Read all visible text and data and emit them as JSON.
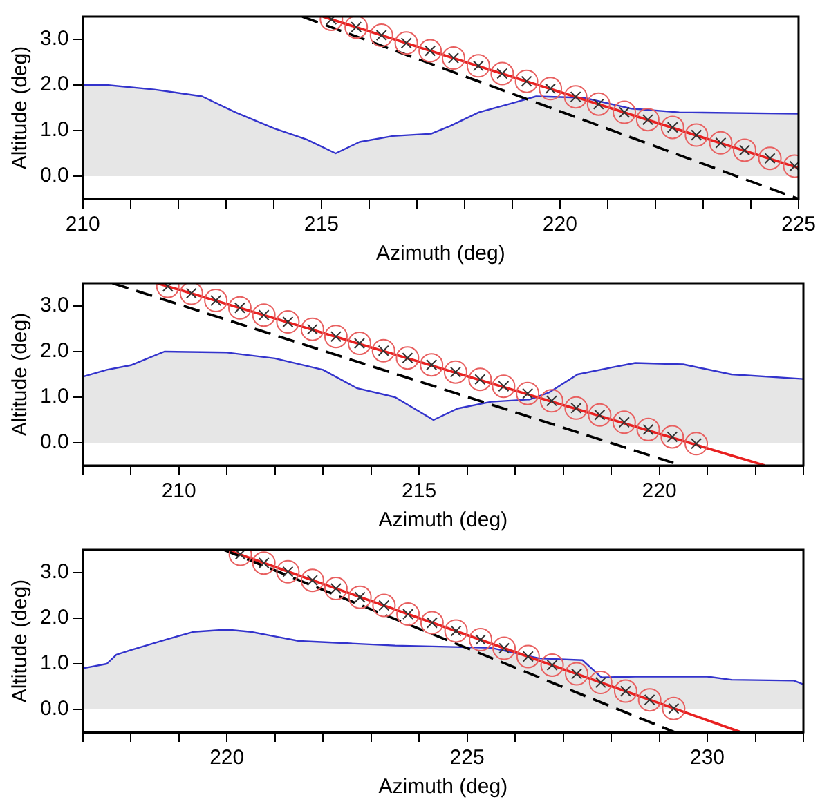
{
  "chart_data": [
    {
      "type": "line",
      "xlabel": "Azimuth (deg)",
      "ylabel": "Altitude (deg)",
      "xlim": [
        210,
        225
      ],
      "ylim": [
        -0.5,
        3.5
      ],
      "xticks": [
        210,
        {
          "value": 211,
          "label": null
        },
        {
          "value": 212,
          "label": null
        },
        {
          "value": 213,
          "label": null
        },
        {
          "value": 214,
          "label": null
        },
        215,
        {
          "value": 216,
          "label": null
        },
        {
          "value": 217,
          "label": null
        },
        {
          "value": 218,
          "label": null
        },
        {
          "value": 219,
          "label": null
        },
        220,
        {
          "value": 221,
          "label": null
        },
        {
          "value": 222,
          "label": null
        },
        {
          "value": 223,
          "label": null
        },
        {
          "value": 224,
          "label": null
        },
        225
      ],
      "yticks": [
        {
          "value": 0,
          "label": "0.0"
        },
        {
          "value": 1,
          "label": "1.0"
        },
        {
          "value": 2,
          "label": "2.0"
        },
        {
          "value": 3,
          "label": "3.0"
        }
      ],
      "grid": false,
      "legend": false,
      "series": [
        {
          "type": "area",
          "color": "#3333cc",
          "x": [
            210,
            210.5,
            211.5,
            212.5,
            213.2,
            214,
            214.7,
            215.3,
            215.8,
            216.5,
            217.3,
            217.7,
            218.3,
            219,
            219.5,
            220.5,
            221.5,
            222.5,
            225
          ],
          "values": [
            2.0,
            2.0,
            1.9,
            1.75,
            1.4,
            1.05,
            0.8,
            0.5,
            0.75,
            0.88,
            0.93,
            1.1,
            1.4,
            1.6,
            1.75,
            1.72,
            1.48,
            1.4,
            1.37
          ]
        },
        {
          "color": "#000000",
          "line_style": "dashed",
          "x": [
            214.6,
            225
          ],
          "values": [
            3.5,
            -0.5
          ]
        },
        {
          "color": "#e82020",
          "x": [
            215.03,
            225
          ],
          "values": [
            3.5,
            0.18
          ]
        },
        {
          "type": "scatter",
          "marker": "circle",
          "color": "#e86060",
          "x": [
            215.21,
            215.73,
            216.26,
            216.78,
            217.28,
            217.77,
            218.29,
            218.79,
            219.3,
            219.8,
            220.33,
            220.81,
            221.35,
            221.84,
            222.36,
            222.86,
            223.37,
            223.87,
            224.4,
            224.92
          ],
          "values": [
            3.44,
            3.27,
            3.09,
            2.92,
            2.75,
            2.59,
            2.42,
            2.25,
            2.08,
            1.92,
            1.74,
            1.58,
            1.4,
            1.24,
            1.07,
            0.9,
            0.73,
            0.57,
            0.39,
            0.22
          ]
        },
        {
          "type": "scatter",
          "marker": "cross",
          "color": "#333333",
          "x": [
            215.21,
            215.73,
            216.26,
            216.78,
            217.28,
            217.77,
            218.29,
            218.79,
            219.3,
            219.8,
            220.33,
            220.81,
            221.35,
            221.84,
            222.36,
            222.86,
            223.37,
            223.87,
            224.4,
            224.92
          ],
          "values": [
            3.44,
            3.27,
            3.09,
            2.92,
            2.75,
            2.59,
            2.42,
            2.25,
            2.08,
            1.92,
            1.74,
            1.58,
            1.4,
            1.24,
            1.07,
            0.9,
            0.73,
            0.57,
            0.39,
            0.22
          ]
        }
      ]
    },
    {
      "type": "line",
      "xlabel": "Azimuth (deg)",
      "ylabel": "Altitude (deg)",
      "xlim": [
        208,
        223
      ],
      "ylim": [
        -0.5,
        3.5
      ],
      "xticks": [
        {
          "value": 208,
          "label": null
        },
        {
          "value": 209,
          "label": null
        },
        210,
        {
          "value": 211,
          "label": null
        },
        {
          "value": 212,
          "label": null
        },
        {
          "value": 213,
          "label": null
        },
        {
          "value": 214,
          "label": null
        },
        215,
        {
          "value": 216,
          "label": null
        },
        {
          "value": 217,
          "label": null
        },
        {
          "value": 218,
          "label": null
        },
        {
          "value": 219,
          "label": null
        },
        220,
        {
          "value": 221,
          "label": null
        },
        {
          "value": 222,
          "label": null
        },
        {
          "value": 223,
          "label": null
        }
      ],
      "yticks": [
        {
          "value": 0,
          "label": "0.0"
        },
        {
          "value": 1,
          "label": "1.0"
        },
        {
          "value": 2,
          "label": "2.0"
        },
        {
          "value": 3,
          "label": "3.0"
        }
      ],
      "grid": false,
      "legend": false,
      "series": [
        {
          "type": "area",
          "color": "#3333cc",
          "x": [
            208,
            208.5,
            209,
            209.7,
            211,
            212,
            213,
            213.7,
            214.5,
            215.3,
            215.8,
            216.5,
            217.3,
            217.7,
            218.3,
            219,
            219.5,
            220.5,
            221.5,
            223
          ],
          "values": [
            1.45,
            1.6,
            1.7,
            2.0,
            1.98,
            1.85,
            1.6,
            1.2,
            1.0,
            0.5,
            0.75,
            0.9,
            0.95,
            1.1,
            1.5,
            1.65,
            1.75,
            1.72,
            1.5,
            1.4
          ]
        },
        {
          "color": "#000000",
          "line_style": "dashed",
          "x": [
            208.62,
            220.46
          ],
          "values": [
            3.5,
            -0.5
          ]
        },
        {
          "color": "#e82020",
          "x": [
            209.55,
            222.2
          ],
          "values": [
            3.5,
            -0.5
          ]
        },
        {
          "type": "scatter",
          "marker": "circle",
          "color": "#e86060",
          "x": [
            209.77,
            210.26,
            210.77,
            211.27,
            211.77,
            212.27,
            212.78,
            213.27,
            213.76,
            214.26,
            214.76,
            215.26,
            215.76,
            216.27,
            216.76,
            217.26,
            217.76,
            218.27,
            218.76,
            219.27,
            219.77,
            220.27,
            220.77
          ],
          "values": [
            3.43,
            3.28,
            3.12,
            2.96,
            2.8,
            2.65,
            2.49,
            2.33,
            2.18,
            2.02,
            1.86,
            1.71,
            1.55,
            1.39,
            1.24,
            1.08,
            0.92,
            0.76,
            0.61,
            0.45,
            0.29,
            0.13,
            -0.02
          ]
        },
        {
          "type": "scatter",
          "marker": "cross",
          "color": "#333333",
          "x": [
            209.77,
            210.26,
            210.77,
            211.27,
            211.77,
            212.27,
            212.78,
            213.27,
            213.76,
            214.26,
            214.76,
            215.26,
            215.76,
            216.27,
            216.76,
            217.26,
            217.76,
            218.27,
            218.76,
            219.27,
            219.77,
            220.27,
            220.77
          ],
          "values": [
            3.43,
            3.28,
            3.12,
            2.96,
            2.8,
            2.65,
            2.49,
            2.33,
            2.18,
            2.02,
            1.86,
            1.71,
            1.55,
            1.39,
            1.24,
            1.08,
            0.92,
            0.76,
            0.61,
            0.45,
            0.29,
            0.13,
            -0.02
          ]
        }
      ]
    },
    {
      "type": "line",
      "xlabel": "Azimuth (deg)",
      "ylabel": "Altitude (deg)",
      "xlim": [
        217,
        232
      ],
      "ylim": [
        -0.5,
        3.5
      ],
      "xticks": [
        {
          "value": 217,
          "label": null
        },
        {
          "value": 218,
          "label": null
        },
        {
          "value": 219,
          "label": null
        },
        220,
        {
          "value": 221,
          "label": null
        },
        {
          "value": 222,
          "label": null
        },
        {
          "value": 223,
          "label": null
        },
        {
          "value": 224,
          "label": null
        },
        225,
        {
          "value": 226,
          "label": null
        },
        {
          "value": 227,
          "label": null
        },
        {
          "value": 228,
          "label": null
        },
        {
          "value": 229,
          "label": null
        },
        230,
        {
          "value": 231,
          "label": null
        },
        {
          "value": 232,
          "label": null
        }
      ],
      "yticks": [
        {
          "value": 0,
          "label": "0.0"
        },
        {
          "value": 1,
          "label": "1.0"
        },
        {
          "value": 2,
          "label": "2.0"
        },
        {
          "value": 3,
          "label": "3.0"
        }
      ],
      "grid": false,
      "legend": false,
      "series": [
        {
          "type": "area",
          "color": "#3333cc",
          "x": [
            217,
            217.5,
            217.7,
            218,
            218.8,
            219.3,
            220,
            220.5,
            221,
            221.5,
            222.5,
            223.5,
            225.5,
            226.5,
            227.4,
            227.8,
            228.5,
            230,
            230.5,
            231.8,
            232
          ],
          "values": [
            0.9,
            1.0,
            1.2,
            1.3,
            1.55,
            1.7,
            1.75,
            1.7,
            1.6,
            1.5,
            1.45,
            1.4,
            1.35,
            1.12,
            1.08,
            0.7,
            0.72,
            0.72,
            0.65,
            0.63,
            0.55
          ]
        },
        {
          "color": "#000000",
          "line_style": "dashed",
          "x": [
            219.94,
            229.32
          ],
          "values": [
            3.5,
            -0.5
          ]
        },
        {
          "color": "#e82020",
          "x": [
            220.0,
            230.7
          ],
          "values": [
            3.5,
            -0.5
          ]
        },
        {
          "type": "scatter",
          "marker": "circle",
          "color": "#e86060",
          "x": [
            220.28,
            220.77,
            221.27,
            221.78,
            222.27,
            222.77,
            223.27,
            223.77,
            224.27,
            224.77,
            225.28,
            225.77,
            226.27,
            226.77,
            227.28,
            227.78,
            228.3,
            228.8,
            229.3
          ],
          "values": [
            3.4,
            3.21,
            3.02,
            2.83,
            2.65,
            2.46,
            2.28,
            2.09,
            1.9,
            1.72,
            1.53,
            1.34,
            1.16,
            0.97,
            0.78,
            0.59,
            0.4,
            0.21,
            0.02
          ]
        },
        {
          "type": "scatter",
          "marker": "cross",
          "color": "#333333",
          "x": [
            220.28,
            220.77,
            221.27,
            221.78,
            222.27,
            222.77,
            223.27,
            223.77,
            224.27,
            224.77,
            225.28,
            225.77,
            226.27,
            226.77,
            227.28,
            227.78,
            228.3,
            228.8,
            229.3
          ],
          "values": [
            3.4,
            3.21,
            3.02,
            2.83,
            2.65,
            2.46,
            2.28,
            2.09,
            1.9,
            1.72,
            1.53,
            1.34,
            1.16,
            0.97,
            0.78,
            0.59,
            0.4,
            0.21,
            0.02
          ]
        }
      ]
    }
  ]
}
